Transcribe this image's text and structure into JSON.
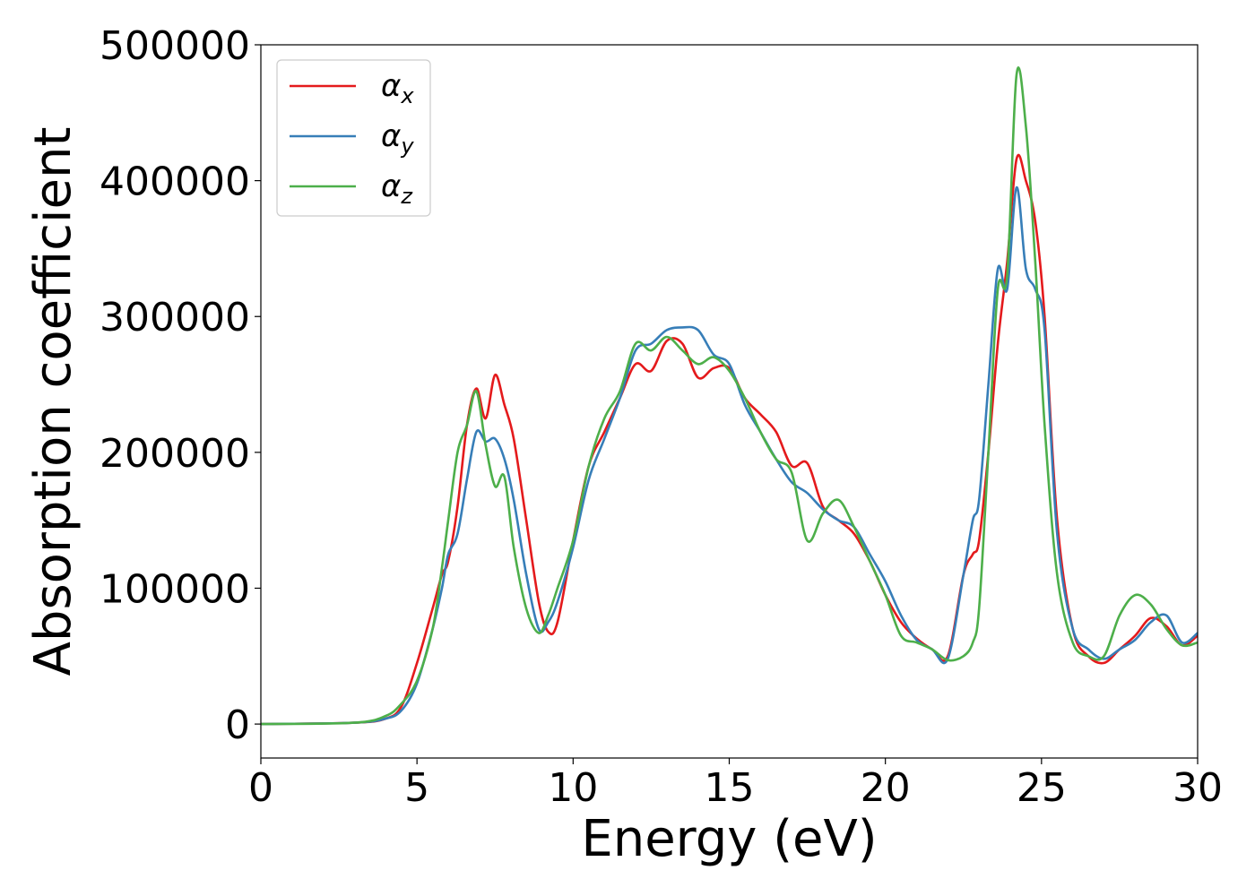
{
  "chart_data": {
    "type": "line",
    "xlabel": "Energy (eV)",
    "ylabel": "Absorption coefficient",
    "xlim": [
      0,
      30
    ],
    "ylim": [
      -25000,
      500000
    ],
    "xticks": [
      0,
      5,
      10,
      15,
      20,
      25,
      30
    ],
    "yticks": [
      0,
      100000,
      200000,
      300000,
      400000,
      500000
    ],
    "grid": false,
    "legend_position": "top-left",
    "series": [
      {
        "name": "α",
        "subscript": "x",
        "color": "#e41a1c",
        "x": [
          0,
          3,
          4,
          4.5,
          5,
          5.5,
          5.8,
          6,
          6.3,
          6.6,
          6.9,
          7.2,
          7.5,
          7.8,
          8.1,
          8.5,
          8.9,
          9.2,
          9.5,
          10,
          10.5,
          11,
          11.5,
          12,
          12.5,
          13,
          13.5,
          14,
          14.5,
          15,
          15.5,
          16,
          16.5,
          17,
          17.5,
          18,
          18.5,
          19,
          19.5,
          20,
          20.5,
          21,
          21.5,
          22,
          22.5,
          22.8,
          23,
          23.3,
          23.6,
          23.9,
          24.2,
          24.5,
          24.8,
          25.1,
          25.5,
          26,
          26.5,
          27,
          27.5,
          28,
          28.5,
          29,
          29.5,
          30
        ],
        "y": [
          0,
          1000,
          4000,
          13000,
          45000,
          85000,
          110000,
          120000,
          160000,
          220000,
          247000,
          225000,
          257000,
          235000,
          210000,
          150000,
          90000,
          68000,
          75000,
          135000,
          190000,
          215000,
          240000,
          265000,
          260000,
          282000,
          280000,
          255000,
          262000,
          262000,
          240000,
          228000,
          215000,
          190000,
          192000,
          160000,
          150000,
          140000,
          120000,
          95000,
          75000,
          63000,
          55000,
          50000,
          110000,
          125000,
          135000,
          200000,
          280000,
          340000,
          416000,
          400000,
          370000,
          300000,
          150000,
          70000,
          50000,
          45000,
          55000,
          65000,
          78000,
          72000,
          58000,
          65000
        ]
      },
      {
        "name": "α",
        "subscript": "y",
        "color": "#377eb8",
        "x": [
          0,
          3,
          4,
          4.5,
          5,
          5.5,
          5.8,
          6,
          6.3,
          6.6,
          6.9,
          7.2,
          7.5,
          7.8,
          8.1,
          8.5,
          8.9,
          9.2,
          9.5,
          10,
          10.5,
          11,
          11.5,
          12,
          12.5,
          13,
          13.5,
          14,
          14.5,
          15,
          15.5,
          16,
          16.5,
          17,
          17.5,
          18,
          18.5,
          19,
          19.5,
          20,
          20.5,
          21,
          21.5,
          22,
          22.5,
          22.8,
          23,
          23.3,
          23.6,
          23.9,
          24.2,
          24.5,
          24.8,
          25.1,
          25.5,
          26,
          26.5,
          27,
          27.5,
          28,
          28.5,
          29,
          29.5,
          30
        ],
        "y": [
          0,
          1000,
          4000,
          10000,
          30000,
          70000,
          100000,
          125000,
          140000,
          180000,
          215000,
          208000,
          210000,
          195000,
          165000,
          110000,
          70000,
          75000,
          90000,
          130000,
          180000,
          210000,
          240000,
          275000,
          280000,
          290000,
          292000,
          290000,
          272000,
          265000,
          235000,
          215000,
          195000,
          178000,
          170000,
          158000,
          150000,
          145000,
          125000,
          105000,
          80000,
          62000,
          55000,
          48000,
          110000,
          150000,
          165000,
          250000,
          335000,
          320000,
          395000,
          335000,
          320000,
          290000,
          140000,
          70000,
          55000,
          48000,
          55000,
          62000,
          75000,
          80000,
          60000,
          67000
        ]
      },
      {
        "name": "α",
        "subscript": "z",
        "color": "#4daf4a",
        "x": [
          0,
          3,
          4,
          4.5,
          5,
          5.5,
          5.8,
          6,
          6.3,
          6.6,
          6.9,
          7.2,
          7.5,
          7.8,
          8.1,
          8.5,
          8.9,
          9.2,
          9.5,
          10,
          10.5,
          11,
          11.5,
          12,
          12.5,
          13,
          13.5,
          14,
          14.5,
          15,
          15.5,
          16,
          16.5,
          17,
          17.5,
          18,
          18.5,
          19,
          19.5,
          20,
          20.5,
          21,
          21.5,
          22,
          22.5,
          22.8,
          23,
          23.3,
          23.6,
          23.9,
          24.2,
          24.5,
          24.8,
          25.1,
          25.5,
          26,
          26.5,
          27,
          27.5,
          28,
          28.5,
          29,
          29.5,
          30
        ],
        "y": [
          0,
          1000,
          6000,
          15000,
          32000,
          70000,
          115000,
          150000,
          200000,
          220000,
          245000,
          205000,
          175000,
          182000,
          130000,
          85000,
          67000,
          80000,
          100000,
          135000,
          190000,
          225000,
          245000,
          280000,
          275000,
          285000,
          275000,
          265000,
          270000,
          260000,
          240000,
          215000,
          195000,
          185000,
          135000,
          155000,
          165000,
          145000,
          120000,
          95000,
          65000,
          60000,
          55000,
          47000,
          50000,
          60000,
          85000,
          200000,
          320000,
          330000,
          478000,
          440000,
          340000,
          220000,
          110000,
          60000,
          50000,
          50000,
          80000,
          95000,
          88000,
          70000,
          58000,
          60000
        ]
      }
    ]
  }
}
